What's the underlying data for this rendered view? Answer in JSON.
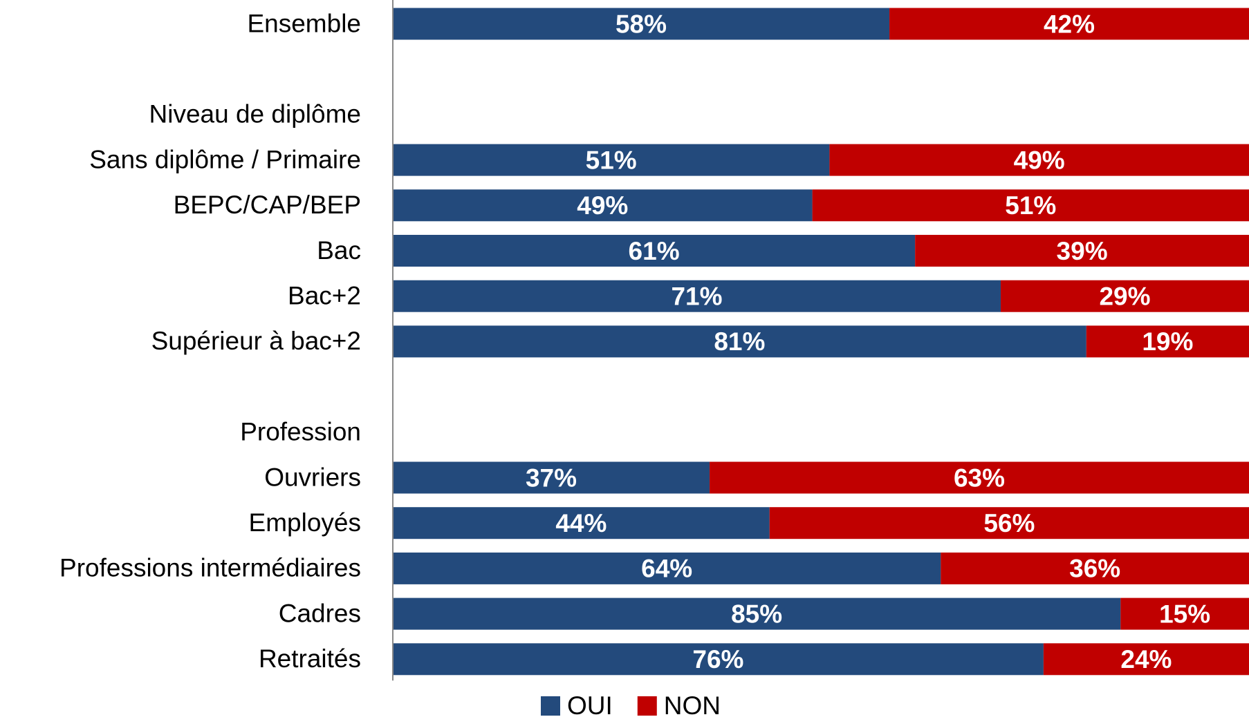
{
  "chart_data": {
    "type": "stacked-bar-horizontal",
    "categories": [
      "Ensemble",
      null,
      "Niveau de diplôme",
      "Sans diplôme / Primaire",
      "BEPC/CAP/BEP",
      "Bac",
      "Bac+2",
      "Supérieur à bac+2",
      null,
      "Profession",
      "Ouvriers",
      "Employés",
      "Professions intermédiaires",
      "Cadres",
      "Retraités"
    ],
    "series": [
      {
        "name": "OUI",
        "color": "#234a7c",
        "values": [
          58,
          null,
          null,
          51,
          49,
          61,
          71,
          81,
          null,
          null,
          37,
          44,
          64,
          85,
          76
        ],
        "value_labels": [
          "58%",
          null,
          null,
          "51%",
          "49%",
          "61%",
          "71%",
          "81%",
          null,
          null,
          "37%",
          "44%",
          "64%",
          "85%",
          "76%"
        ]
      },
      {
        "name": "NON",
        "color": "#c00000",
        "values": [
          42,
          null,
          null,
          49,
          51,
          39,
          29,
          19,
          null,
          null,
          63,
          56,
          36,
          15,
          24
        ],
        "value_labels": [
          "42%",
          null,
          null,
          "49%",
          "51%",
          "39%",
          "29%",
          "19%",
          null,
          null,
          "63%",
          "56%",
          "36%",
          "15%",
          "24%"
        ]
      }
    ],
    "xlim": [
      0,
      100
    ],
    "legend": "bottom"
  }
}
